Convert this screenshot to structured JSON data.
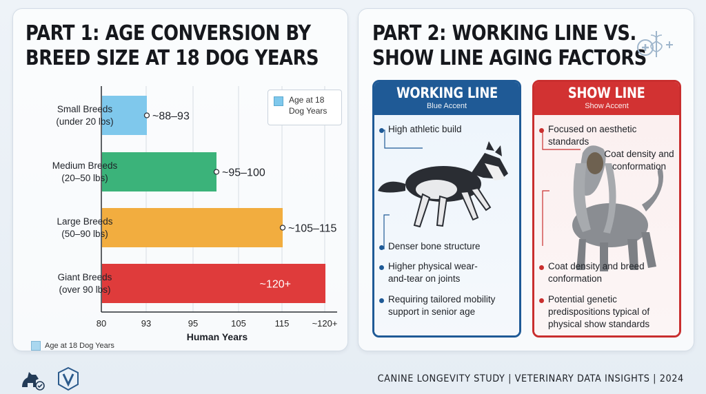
{
  "left": {
    "title_line1": "PART 1: AGE CONVERSION BY",
    "title_line2": "BREED SIZE AT 18 DOG YEARS",
    "legend_box_label": "Age at 18 Dog Years",
    "legend_bottom_label": "Age at 18 Dog Years"
  },
  "chart_data": {
    "type": "bar",
    "orientation": "horizontal",
    "categories": [
      "Small Breeds (under 20 lbs)",
      "Medium Breeds (20–50 lbs)",
      "Large Breeds (50–90 lbs)",
      "Giant Breeds (over 90 lbs)"
    ],
    "category_lines": [
      [
        "Small Breeds",
        "(under 20 lbs)"
      ],
      [
        "Medium Breeds",
        "(20–50 lbs)"
      ],
      [
        "Large Breeds",
        "(50–90 lbs)"
      ],
      [
        "Giant Breeds",
        "(over 90 lbs)"
      ]
    ],
    "values": [
      93,
      100,
      115,
      120
    ],
    "data_labels": [
      "~88–93",
      "~95–100",
      "~105–115",
      "~120+"
    ],
    "colors": [
      "#7fc8ec",
      "#3bb37a",
      "#f2ad3f",
      "#df3b3b"
    ],
    "xlabel": "Human Years",
    "ylabel": "",
    "tick_labels": [
      "80",
      "93",
      "95",
      "105",
      "115",
      "~120+"
    ],
    "tick_values": [
      80,
      93,
      95,
      105,
      115,
      120
    ],
    "grid": true,
    "legend": "top-right"
  },
  "right": {
    "title_line1": "PART 2: WORKING LINE VS.",
    "title_line2": "SHOW LINE AGING FACTORS",
    "working": {
      "title": "WORKING LINE",
      "subtitle": "Blue Accent",
      "features": [
        "High athletic build",
        "Denser bone structure",
        "Higher physical wear-and-tear on joints",
        "Requiring tailored mobility support in senior age"
      ]
    },
    "show": {
      "title": "SHOW LINE",
      "subtitle": "Show Accent",
      "features": [
        "Focused on aesthetic standards",
        "Coat density and conformation",
        "Coat density and breed conformation",
        "Potential genetic predispositions typical of physical show standards"
      ]
    }
  },
  "footer": {
    "text": "CANINE LONGEVITY STUDY | VETERINARY DATA INSIGHTS | 2024"
  }
}
